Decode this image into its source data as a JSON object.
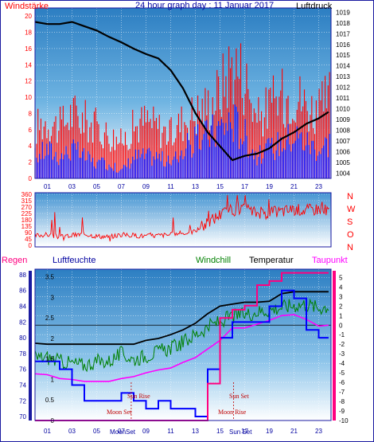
{
  "header": {
    "windstaerke": "Windstärke",
    "title": "24 hour graph day : 11 Januar 2017",
    "luftdruck": "Luftdruck"
  },
  "legend": {
    "regen": "Regen",
    "luftfeuchte": "Luftfeuchte",
    "windchill": "Windchill",
    "temperatur": "Temperatur",
    "taupunkt": "Taupunkt"
  },
  "directions": [
    "N",
    "W",
    "S",
    "O",
    "N"
  ],
  "annotations": {
    "sun_rise": "Sun Rise",
    "sun_set": "Sun Set",
    "moon_set": "Moon Set",
    "moon_rise": "Moon Rise",
    "moon_set_axis": "MoonSet",
    "sun_set_axis": "Sun Set"
  },
  "colors": {
    "wind_gust": "#ff0000",
    "wind_avg": "#0000ff",
    "pressure": "#000000",
    "humidity": "#0000ff",
    "windchill": "#008000",
    "temperature": "#000000",
    "dewpoint": "#ff00ff",
    "rain": "#ff0080",
    "windstaerke_label": "#ff0000",
    "title_label": "#0000a0",
    "frame": "#1a1aa0"
  },
  "chart_data": [
    {
      "type": "line",
      "name": "wind",
      "x_ticks": [
        "01",
        "03",
        "05",
        "07",
        "09",
        "11",
        "13",
        "15",
        "17",
        "19",
        "21",
        "23"
      ],
      "y_left": {
        "ticks": [
          0,
          2,
          4,
          6,
          8,
          10,
          12,
          14,
          16,
          18,
          20
        ],
        "range": [
          0,
          21
        ]
      },
      "y_right": {
        "ticks": [
          1004,
          1005,
          1006,
          1007,
          1008,
          1009,
          1010,
          1011,
          1012,
          1013,
          1014,
          1015,
          1016,
          1017,
          1018,
          1019
        ],
        "range": [
          1003.5,
          1019.4
        ]
      },
      "series": [
        {
          "name": "Windstärke",
          "axis": "left",
          "style": "gust",
          "x": [
            0,
            1,
            2,
            3,
            4,
            5,
            6,
            7,
            8,
            9,
            10,
            11,
            12,
            13,
            14,
            15,
            16,
            17,
            18,
            19,
            20,
            21,
            22,
            23,
            23.8
          ],
          "y": [
            7,
            8,
            7,
            9,
            8,
            7,
            6,
            5,
            7,
            8,
            7,
            6,
            8,
            9,
            10,
            12,
            16,
            14,
            8,
            10,
            11,
            12,
            10,
            9,
            11
          ]
        },
        {
          "name": "Wind average",
          "axis": "left",
          "style": "avg",
          "x": [
            0,
            1,
            2,
            3,
            4,
            5,
            6,
            7,
            8,
            9,
            10,
            11,
            12,
            13,
            14,
            15,
            16,
            17,
            18,
            19,
            20,
            21,
            22,
            23,
            23.8
          ],
          "y": [
            3,
            4,
            3,
            4,
            3,
            2,
            2,
            1,
            3,
            3,
            3,
            2,
            4,
            5,
            6,
            7,
            8,
            6,
            3,
            4,
            5,
            6,
            5,
            4,
            5
          ]
        },
        {
          "name": "Luftdruck",
          "axis": "right",
          "x": [
            0,
            1,
            2,
            3,
            4,
            5,
            6,
            7,
            8,
            9,
            10,
            11,
            12,
            13,
            14,
            15,
            16,
            17,
            18,
            19,
            20,
            21,
            22,
            23,
            23.8
          ],
          "y": [
            1018.1,
            1017.9,
            1017.9,
            1018.1,
            1017.7,
            1017.3,
            1016.7,
            1016.2,
            1015.6,
            1015.1,
            1014.7,
            1013.6,
            1011.9,
            1009.6,
            1007.8,
            1006.5,
            1005.2,
            1005.6,
            1005.8,
            1006.3,
            1007.2,
            1007.8,
            1008.6,
            1009.1,
            1009.7
          ]
        }
      ]
    },
    {
      "type": "line",
      "name": "wind_direction",
      "x_ticks": [
        "01",
        "03",
        "05",
        "07",
        "09",
        "11",
        "13",
        "15",
        "17",
        "19",
        "21",
        "23"
      ],
      "y_left": {
        "ticks": [
          0,
          45,
          90,
          135,
          180,
          225,
          270,
          315,
          360
        ],
        "range": [
          0,
          360
        ]
      },
      "series": [
        {
          "name": "Windrichtung",
          "x": [
            0,
            1,
            2,
            3,
            4,
            5,
            6,
            7,
            8,
            9,
            10,
            11,
            12,
            13,
            14,
            15,
            16,
            17,
            18,
            19,
            20,
            21,
            22,
            23,
            23.8
          ],
          "y": [
            70,
            75,
            60,
            70,
            80,
            65,
            60,
            75,
            70,
            65,
            70,
            75,
            85,
            100,
            160,
            220,
            250,
            250,
            230,
            230,
            240,
            255,
            250,
            260,
            250
          ]
        }
      ]
    },
    {
      "type": "line",
      "name": "temperature_humidity",
      "x_ticks": [
        "01",
        "03",
        "05",
        "07",
        "09",
        "11",
        "13",
        "15",
        "17",
        "19",
        "21",
        "23"
      ],
      "y_humidity": {
        "ticks": [
          70,
          72,
          74,
          76,
          78,
          80,
          82,
          84,
          86,
          88
        ],
        "range": [
          69.5,
          88.5
        ]
      },
      "y_rain": {
        "ticks": [
          0,
          0.5,
          1,
          1.5,
          2,
          2.5,
          3,
          3.5
        ],
        "range": [
          0,
          3.65
        ]
      },
      "y_right": {
        "ticks": [
          5,
          4,
          3,
          2,
          1,
          0,
          -1,
          -2,
          -3,
          -4,
          -5,
          -6,
          -7,
          -8,
          -9,
          -10
        ],
        "range": [
          -10,
          5.7
        ]
      },
      "series": [
        {
          "name": "Temperatur",
          "axis": "right",
          "x": [
            0,
            1,
            2,
            3,
            4,
            5,
            6,
            7,
            8,
            9,
            10,
            11,
            12,
            13,
            14,
            15,
            16,
            17,
            18,
            19,
            20,
            21,
            22,
            23,
            23.8
          ],
          "y": [
            -1.9,
            -2,
            -2,
            -2,
            -2,
            -2,
            -2,
            -2,
            -2,
            -1.6,
            -1.4,
            -1,
            -0.5,
            0.2,
            1.2,
            2,
            2.2,
            2.4,
            2.4,
            2.5,
            3.3,
            3.5,
            3.5,
            3.5,
            3.5
          ]
        },
        {
          "name": "Windchill",
          "axis": "right",
          "x": [
            0,
            1,
            2,
            3,
            4,
            5,
            6,
            7,
            8,
            9,
            10,
            11,
            12,
            13,
            14,
            15,
            16,
            17,
            18,
            19,
            20,
            21,
            22,
            23,
            23.8
          ],
          "y": [
            -3.4,
            -3.4,
            -3.8,
            -4,
            -4.2,
            -3.8,
            -3.8,
            -3,
            -3.6,
            -3.2,
            -2.8,
            -2.4,
            -1.8,
            -1,
            -0.2,
            0.4,
            0.9,
            1.1,
            1.4,
            1.6,
            1.9,
            2.1,
            2.2,
            1.8,
            2
          ]
        },
        {
          "name": "Taupunkt",
          "axis": "right",
          "x": [
            0,
            1,
            2,
            3,
            4,
            5,
            6,
            7,
            8,
            9,
            10,
            11,
            12,
            13,
            14,
            15,
            16,
            17,
            18,
            19,
            20,
            21,
            22,
            23,
            23.8
          ],
          "y": [
            -5.1,
            -5.2,
            -5.6,
            -5.7,
            -5.9,
            -5.9,
            -5.9,
            -5.6,
            -5.4,
            -5,
            -4.7,
            -4.5,
            -3.9,
            -3.4,
            -2.5,
            -1.6,
            -0.3,
            -0.3,
            0.1,
            0.5,
            1,
            1.1,
            0.6,
            -0.1,
            0
          ]
        },
        {
          "name": "Luftfeuchte",
          "axis": "humidity",
          "x": [
            0,
            1,
            2,
            3,
            4,
            5,
            6,
            7,
            8,
            9,
            10,
            11,
            12,
            13,
            14,
            15,
            16,
            17,
            18,
            19,
            20,
            21,
            22,
            23,
            23.8
          ],
          "y": [
            77,
            77,
            76,
            74,
            72,
            72,
            72,
            73,
            72,
            71,
            72,
            71,
            71,
            70,
            76,
            80,
            82,
            82,
            82,
            84,
            86,
            85,
            81,
            80,
            80
          ]
        },
        {
          "name": "Regen",
          "axis": "rain",
          "x": [
            0,
            1,
            2,
            3,
            4,
            5,
            6,
            7,
            8,
            9,
            10,
            11,
            12,
            13,
            14,
            15,
            16,
            17,
            18,
            19,
            20,
            21,
            22,
            23,
            23.8
          ],
          "y": [
            0,
            0,
            0,
            0,
            0,
            0,
            0,
            0,
            0,
            0,
            0,
            0,
            0,
            0,
            0.9,
            2.5,
            2.7,
            2.8,
            3.3,
            3.4,
            3.6,
            3.6,
            3.6,
            3.6,
            3.6
          ]
        }
      ]
    }
  ]
}
